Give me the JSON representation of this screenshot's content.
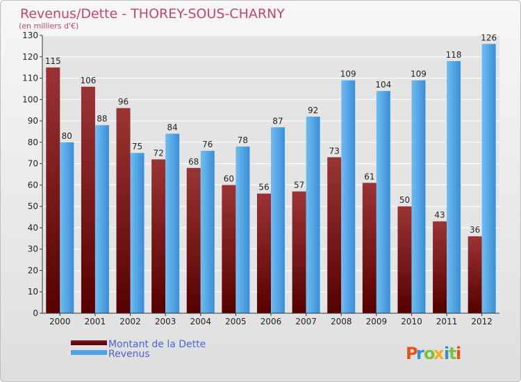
{
  "chart_data": {
    "type": "bar",
    "title": "Revenus/Dette - THOREY-SOUS-CHARNY",
    "subtitle": "(en milliers d'€)",
    "categories": [
      "2000",
      "2001",
      "2002",
      "2003",
      "2004",
      "2005",
      "2006",
      "2007",
      "2008",
      "2009",
      "2010",
      "2011",
      "2012"
    ],
    "series": [
      {
        "name": "Montant de la Dette",
        "color": "#7a1010",
        "values": [
          115,
          106,
          96,
          72,
          68,
          60,
          56,
          57,
          73,
          61,
          50,
          43,
          36
        ]
      },
      {
        "name": "Revenus",
        "color": "#4aa3e6",
        "values": [
          80,
          88,
          75,
          84,
          76,
          78,
          87,
          92,
          109,
          104,
          109,
          118,
          126
        ]
      }
    ],
    "ylim": [
      0,
      130
    ],
    "yticks": [
      0,
      10,
      20,
      30,
      40,
      50,
      60,
      70,
      80,
      90,
      100,
      110,
      120,
      130
    ],
    "grid": true,
    "legend": "bottom-left"
  },
  "brand": {
    "letters": [
      "P",
      "r",
      "o",
      "x",
      "i",
      "t",
      "i"
    ],
    "colors": [
      "#e8501e",
      "#2f8fd8",
      "#7fbf3f",
      "#f2b01e",
      "#2f8fd8",
      "#7fbf3f",
      "#e8501e"
    ]
  }
}
